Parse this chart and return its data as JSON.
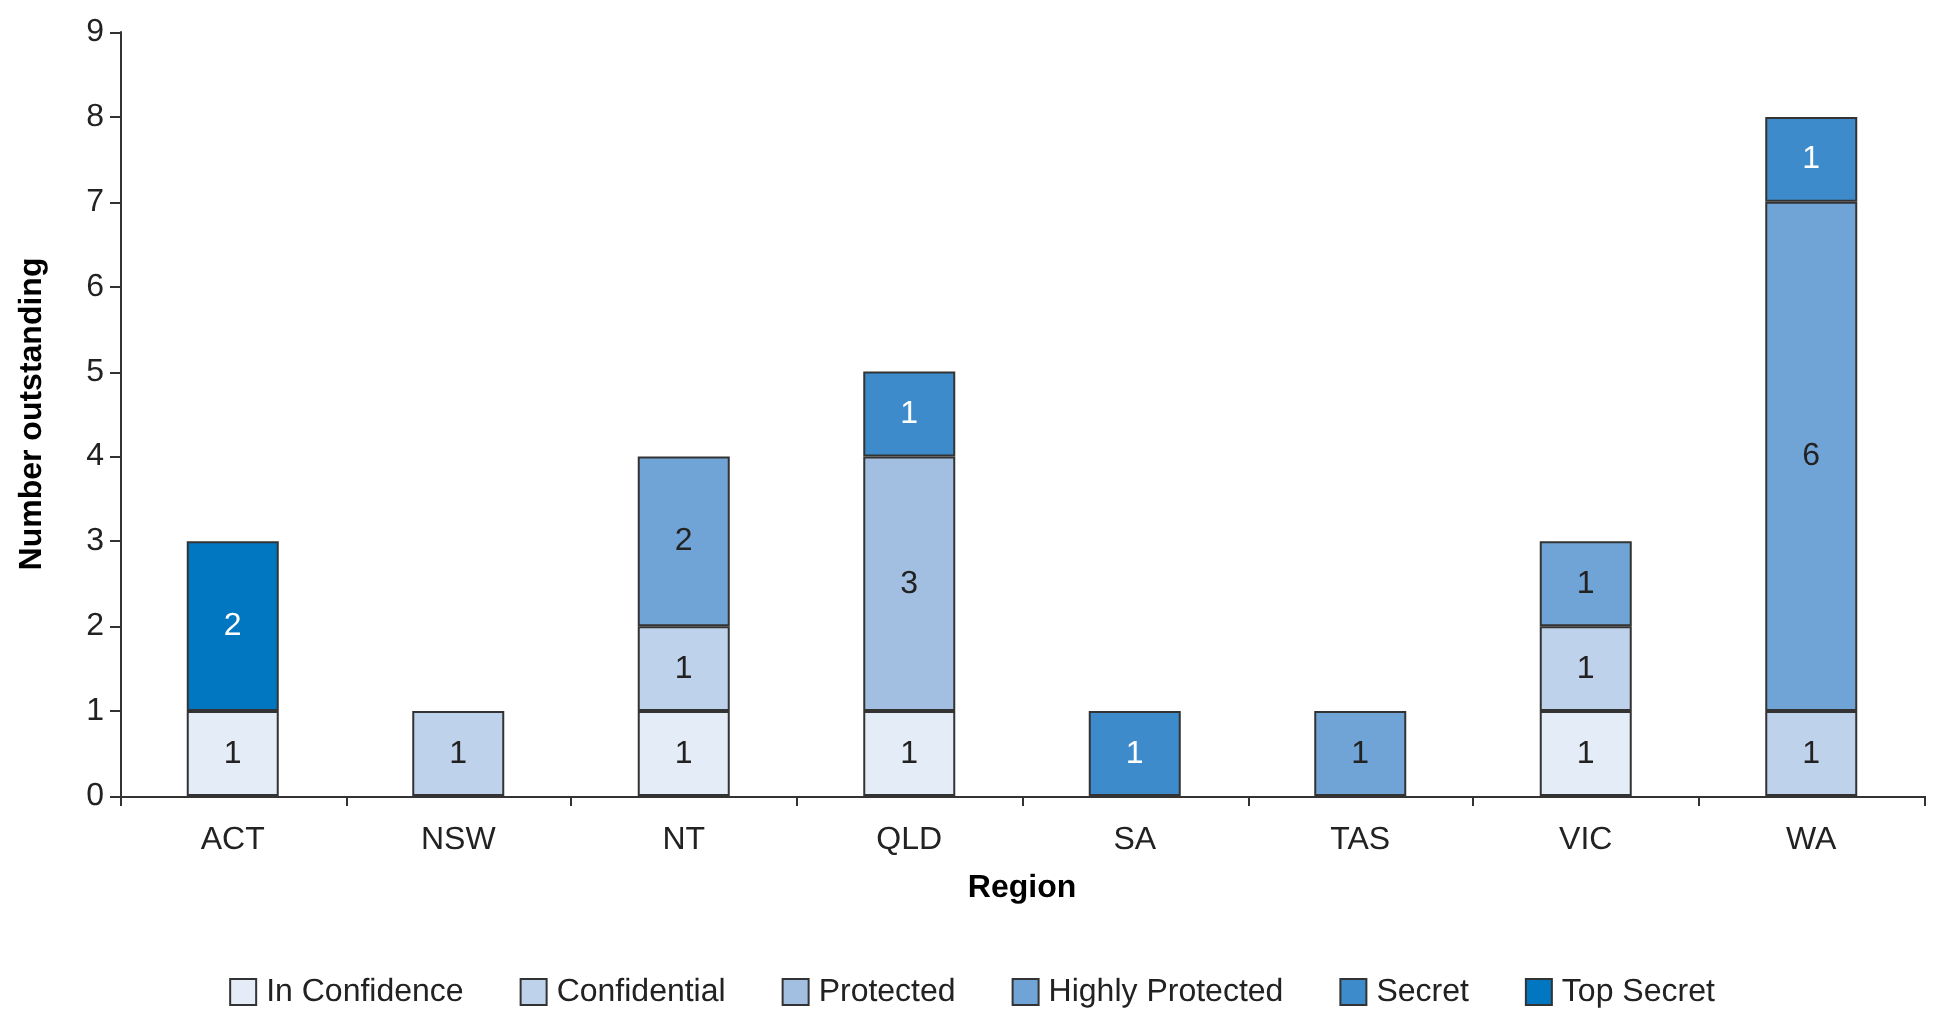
{
  "chart_data": {
    "type": "bar",
    "stacked": true,
    "xlabel": "Region",
    "ylabel": "Number outstanding",
    "categories": [
      "ACT",
      "NSW",
      "NT",
      "QLD",
      "SA",
      "TAS",
      "VIC",
      "WA"
    ],
    "series": [
      {
        "name": "In Confidence",
        "color": "#e4ecf7",
        "values": [
          1,
          null,
          1,
          1,
          null,
          null,
          1,
          null
        ]
      },
      {
        "name": "Confidential",
        "color": "#bfd2eb",
        "values": [
          null,
          1,
          1,
          null,
          null,
          null,
          1,
          1
        ]
      },
      {
        "name": "Protected",
        "color": "#a2bfe2",
        "values": [
          null,
          null,
          null,
          3,
          null,
          null,
          null,
          null
        ]
      },
      {
        "name": "Highly Protected",
        "color": "#71a4d6",
        "values": [
          null,
          null,
          2,
          null,
          null,
          1,
          1,
          6
        ]
      },
      {
        "name": "Secret",
        "color": "#3d8bca",
        "values": [
          null,
          null,
          null,
          1,
          1,
          null,
          null,
          1
        ]
      },
      {
        "name": "Top Secret",
        "color": "#0077c0",
        "values": [
          2,
          null,
          null,
          null,
          null,
          null,
          null,
          null
        ]
      }
    ],
    "ylim": [
      0,
      9
    ],
    "yticks": [
      0,
      1,
      2,
      3,
      4,
      5,
      6,
      7,
      8,
      9
    ],
    "grid": false,
    "legend": "bottom",
    "data_labels": true
  }
}
